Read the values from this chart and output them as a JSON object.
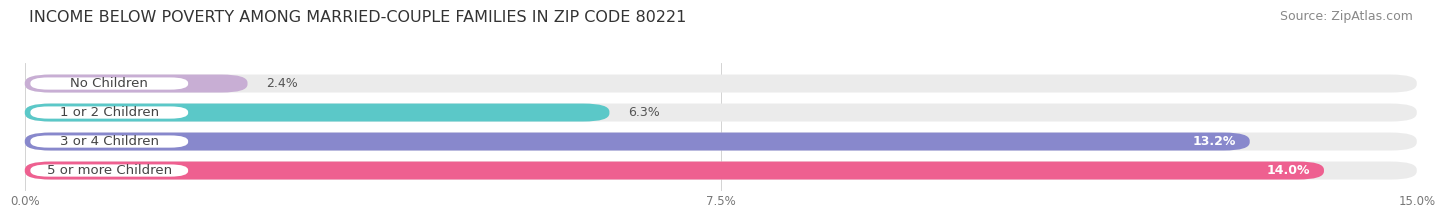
{
  "title": "INCOME BELOW POVERTY AMONG MARRIED-COUPLE FAMILIES IN ZIP CODE 80221",
  "source": "Source: ZipAtlas.com",
  "categories": [
    "No Children",
    "1 or 2 Children",
    "3 or 4 Children",
    "5 or more Children"
  ],
  "values": [
    2.4,
    6.3,
    13.2,
    14.0
  ],
  "bar_colors": [
    "#c8aed4",
    "#5bc8c8",
    "#8888cc",
    "#ee6090"
  ],
  "xlim": [
    0,
    15.0
  ],
  "xticks": [
    0.0,
    7.5,
    15.0
  ],
  "xticklabels": [
    "0.0%",
    "7.5%",
    "15.0%"
  ],
  "bg_color": "#ffffff",
  "bar_bg_color": "#ebebeb",
  "title_fontsize": 11.5,
  "source_fontsize": 9,
  "label_fontsize": 9.5,
  "value_fontsize": 9,
  "bar_height": 0.62,
  "value_white_threshold": 10.0
}
